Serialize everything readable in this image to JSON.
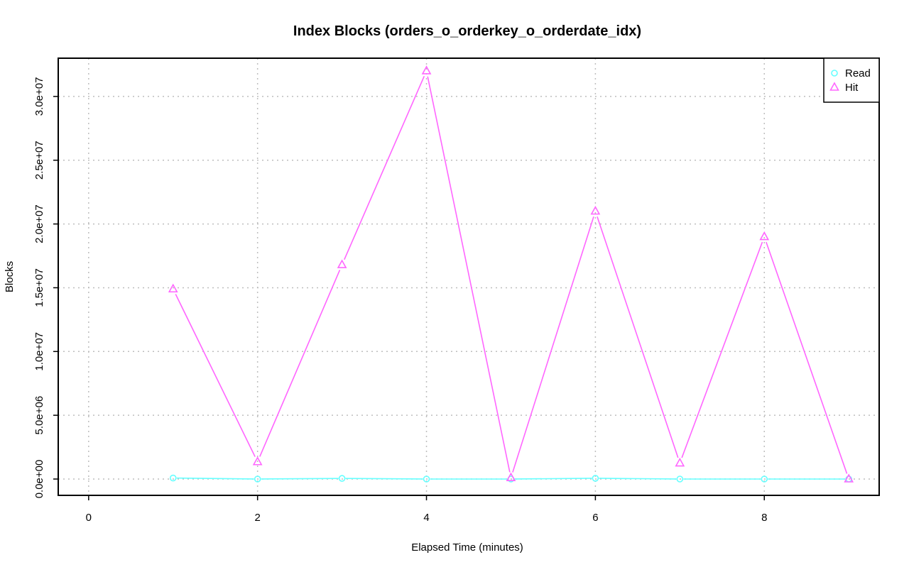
{
  "chart_data": {
    "type": "line",
    "title": "Index Blocks (orders_o_orderkey_o_orderdate_idx)",
    "xlabel": "Elapsed Time (minutes)",
    "ylabel": "Blocks",
    "xlim": [
      -0.36,
      9.36
    ],
    "ylim": [
      -1280000,
      33000000
    ],
    "x_ticks": [
      0,
      2,
      4,
      6,
      8
    ],
    "x_tick_labels": [
      "0",
      "2",
      "4",
      "6",
      "8"
    ],
    "y_ticks": [
      0,
      5000000,
      10000000,
      15000000,
      20000000,
      25000000,
      30000000
    ],
    "y_tick_labels": [
      "0.0e+00",
      "5.0e+06",
      "1.0e+07",
      "1.5e+07",
      "2.0e+07",
      "2.5e+07",
      "3.0e+07"
    ],
    "grid": true,
    "legend_position": "top-right",
    "x": [
      1,
      2,
      3,
      4,
      5,
      6,
      7,
      8,
      9
    ],
    "series": [
      {
        "name": "Read",
        "marker": "circle",
        "color": "#66ffff",
        "values": [
          80000,
          0,
          50000,
          0,
          0,
          60000,
          0,
          0,
          0
        ]
      },
      {
        "name": "Hit",
        "marker": "triangle",
        "color": "#ff66ff",
        "values": [
          14900000,
          1350000,
          16800000,
          32000000,
          100000,
          21000000,
          1250000,
          19000000,
          0
        ]
      }
    ]
  }
}
